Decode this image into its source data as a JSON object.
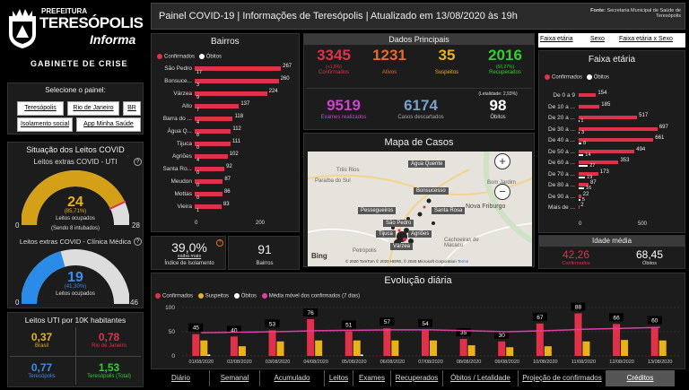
{
  "logo": {
    "line1": "PREFEITURA",
    "line2": "TERESÓPOLIS",
    "line3": "Informa",
    "line4": "GABINETE DE CRISE"
  },
  "header": {
    "title": "Painel COVID-19 | Informações de Teresópolis | Atualizado em 13/08/2020 às 19h",
    "source_label": "Fonte:",
    "source": "Secretaria Municipal de Saúde de Teresópolis"
  },
  "selector": {
    "title": "Selecione o painel:",
    "buttons": [
      "Teresópolis",
      "Rio de Janeiro",
      "BR",
      "Isolamento social",
      "App Minha Saúde"
    ]
  },
  "leitos": {
    "title": "Situação dos Leitos COVID",
    "uti": {
      "title": "Leitos extras COVID - UTI",
      "value": "24",
      "pct": "(85,71%)",
      "label": "Leitos ocupados",
      "note": "(Sendo 8 intubados)",
      "min": "0",
      "max": "28",
      "fraction": 0.857
    },
    "clinica": {
      "title": "Leitos extras COVID - Clínica Médica",
      "value": "19",
      "pct": "(41,30%)",
      "label": "Leitos ocupados",
      "min": "0",
      "max": "46",
      "fraction": 0.413
    }
  },
  "uti10k": {
    "title": "Leitos UTI por 10K habitantes",
    "cells": [
      {
        "v": "0,37",
        "l": "Brasil",
        "c": "#e8b21a"
      },
      {
        "v": "0,78",
        "l": "Rio de Janeiro",
        "c": "#e0314b"
      },
      {
        "v": "0,77",
        "l": "Teresópolis",
        "c": "#3d8be8"
      },
      {
        "v": "1,53",
        "l": "Teresópolis (Total)",
        "c": "#33cc33"
      }
    ]
  },
  "bairros": {
    "title": "Bairros",
    "legend": [
      "Confirmados",
      "Óbitos"
    ],
    "axis": [
      "0",
      "200"
    ],
    "items": [
      {
        "n": "São Pedro",
        "c": 267,
        "o": 17
      },
      {
        "n": "Bonsuce...",
        "c": 260,
        "o": 3
      },
      {
        "n": "Várzea",
        "c": 224,
        "o": 9
      },
      {
        "n": "Alto",
        "c": 137,
        "o": 7
      },
      {
        "n": "Barra do ...",
        "c": 118,
        "o": 4
      },
      {
        "n": "Água Q...",
        "c": 112,
        "o": 8
      },
      {
        "n": "Tijuca",
        "c": 111,
        "o": 0
      },
      {
        "n": "Agriões",
        "c": 102,
        "o": 4
      },
      {
        "n": "Santa Ro...",
        "c": 92,
        "o": 0
      },
      {
        "n": "Meudon",
        "c": 87,
        "o": 0
      },
      {
        "n": "Mottas",
        "c": 86,
        "o": 0
      },
      {
        "n": "Vieira",
        "c": 83,
        "o": 1
      }
    ]
  },
  "isolamento": {
    "value": "39,0%",
    "sub": "saiba mais",
    "label": "Índice de Isolamento"
  },
  "bairros_count": {
    "value": "91",
    "label": "Bairros"
  },
  "dados": {
    "title": "Dados Principais",
    "confirmados": {
      "v": "3345",
      "d": "(+1,8%)",
      "l": "Confirmados",
      "c": "#e0314b"
    },
    "ativos": {
      "v": "1231",
      "l": "Ativos",
      "c": "#e86a2a"
    },
    "suspeitos": {
      "v": "35",
      "l": "Suspeitos",
      "c": "#e8b21a"
    },
    "recuperados": {
      "v": "2016",
      "d": "(60,27%)",
      "l": "Recuperados",
      "c": "#33cc33"
    },
    "exames": {
      "v": "9519",
      "l": "Exames realizados",
      "c": "#cc44cc"
    },
    "descartados": {
      "v": "6174",
      "l": "Casos descartados",
      "c": "#7aa0cc"
    },
    "obitos": {
      "v": "98",
      "d": "(Letalidade: 2,93%)",
      "l": "Óbitos",
      "c": "#ffffff"
    }
  },
  "mapa": {
    "title": "Mapa de Casos",
    "places": [
      "Três Rios",
      "Paraíba do Sul",
      "Água Quente",
      "Bom Jardim",
      "Bonsucesso",
      "Santa Rosa",
      "Nova Friburgo",
      "Pessegueiros",
      "São Pedro",
      "Tijuca",
      "Agriões",
      "Várzea",
      "Cachoeiras de Macacu",
      "Petrópolis"
    ],
    "bing": "Bing",
    "credits": "© 2020 TomTom © 2020 HERE, © 2020 Microsoft Corporation",
    "terms": "Terms",
    "zoom_in": "+",
    "zoom_out": "−"
  },
  "faixa": {
    "tabs": [
      "Faixa etária",
      "Sexo",
      "Faixa etária x Sexo"
    ],
    "title": "Faixa etária",
    "legend": [
      "Confirmados",
      "Óbitos"
    ],
    "axis": [
      "0",
      "500"
    ],
    "items": [
      {
        "n": "De 0 a 9",
        "c": 154,
        "o": null
      },
      {
        "n": "De 10 a ...",
        "c": 185,
        "o": null
      },
      {
        "n": "De 20 a ...",
        "c": 517,
        "o": 1
      },
      {
        "n": "De 30 a ...",
        "c": 697,
        "o": 3
      },
      {
        "n": "De 40 a ...",
        "c": 661,
        "o": 8
      },
      {
        "n": "De 50 a ...",
        "c": 494,
        "o": 14
      },
      {
        "n": "De 60 a ...",
        "c": 353,
        "o": 27
      },
      {
        "n": "De 70 a ...",
        "c": 173,
        "o": 19
      },
      {
        "n": "De 80 a ...",
        "c": 87,
        "o": 16
      },
      {
        "n": "De 90 a ...",
        "c": 22,
        "o": 5
      },
      {
        "n": "Mais de ...",
        "c": 2,
        "o": null
      }
    ]
  },
  "idade": {
    "title": "Idade média",
    "conf": {
      "v": "42,26",
      "l": "Confirmados"
    },
    "obit": {
      "v": "68,45",
      "l": "Óbitos"
    }
  },
  "colors": {
    "confirmados": "#e0314b",
    "suspeitos": "#e8b21a",
    "obitos": "#ffffff",
    "media": "#e040a0"
  },
  "chart_data": {
    "type": "bar",
    "title": "Evolução diária",
    "legend": [
      "Confirmados",
      "Suspeitos",
      "Óbitos",
      "Média móvel dos confirmados (7 dias)"
    ],
    "yticks": [
      "0",
      "50",
      "100"
    ],
    "ylim": [
      0,
      100
    ],
    "categories": [
      "01/08/2020",
      "02/08/2020",
      "03/08/2020",
      "04/08/2020",
      "05/08/2020",
      "06/08/2020",
      "07/08/2020",
      "08/08/2020",
      "09/08/2020",
      "10/08/2020",
      "11/08/2020",
      "12/08/2020",
      "13/08/2020"
    ],
    "series": [
      {
        "name": "Confirmados",
        "values": [
          45,
          40,
          53,
          76,
          51,
          57,
          54,
          35,
          30,
          67,
          88,
          66,
          60
        ]
      },
      {
        "name": "Suspeitos",
        "values": [
          32,
          20,
          30,
          32,
          32,
          32,
          32,
          22,
          18,
          20,
          30,
          33,
          32
        ]
      },
      {
        "name": "Óbitos",
        "values": [
          1,
          0,
          0,
          0,
          1,
          0,
          0,
          0,
          0,
          0,
          0,
          0,
          0
        ]
      },
      {
        "name": "Média móvel dos confirmados (7 dias)",
        "values": [
          48,
          49,
          50,
          52,
          53,
          54,
          54,
          52,
          50,
          52,
          55,
          57,
          59
        ]
      }
    ]
  },
  "tabs": [
    "Diário",
    "Semanal",
    "Acumulado",
    "Leitos",
    "Exames",
    "Recuperados",
    "Óbitos / Letalidade",
    "Projeção de confirmados",
    "Créditos"
  ]
}
